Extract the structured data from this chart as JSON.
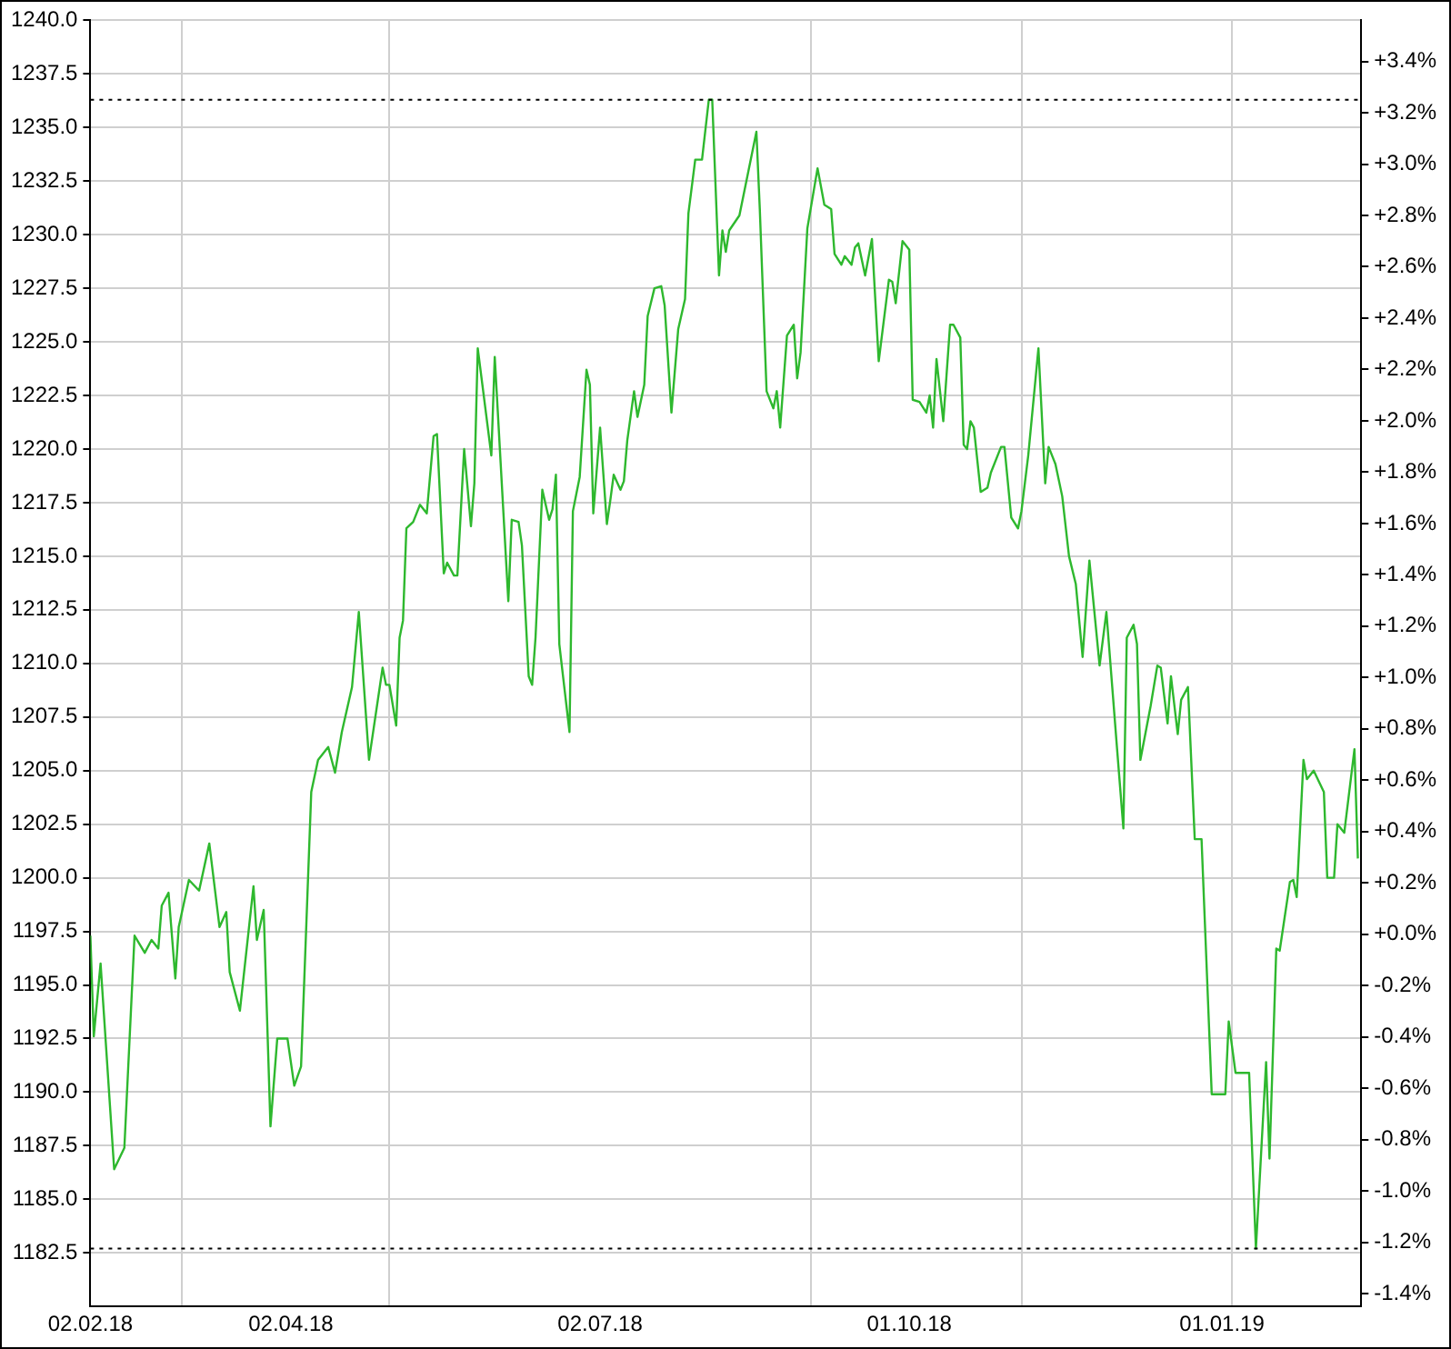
{
  "chart_data": {
    "type": "line",
    "color": "#2eb82e",
    "x": [
      "2018-02-02",
      "2018-02-03",
      "2018-02-05",
      "2018-02-09",
      "2018-02-12",
      "2018-02-15",
      "2018-02-18",
      "2018-02-20",
      "2018-02-22",
      "2018-02-23",
      "2018-02-25",
      "2018-02-27",
      "2018-02-28",
      "2018-03-03",
      "2018-03-06",
      "2018-03-09",
      "2018-03-12",
      "2018-03-14",
      "2018-03-15",
      "2018-03-18",
      "2018-03-22",
      "2018-03-23",
      "2018-03-25",
      "2018-03-27",
      "2018-03-29",
      "2018-04-01",
      "2018-04-03",
      "2018-04-05",
      "2018-04-08",
      "2018-04-10",
      "2018-04-12",
      "2018-04-13",
      "2018-04-15",
      "2018-04-17",
      "2018-04-20",
      "2018-04-22",
      "2018-04-25",
      "2018-04-29",
      "2018-04-30",
      "2018-05-01",
      "2018-05-03",
      "2018-05-04",
      "2018-05-05",
      "2018-05-06",
      "2018-05-08",
      "2018-05-10",
      "2018-05-12",
      "2018-05-14",
      "2018-05-15",
      "2018-05-17",
      "2018-05-18",
      "2018-05-20",
      "2018-05-21",
      "2018-05-23",
      "2018-05-25",
      "2018-05-26",
      "2018-05-27",
      "2018-05-31",
      "2018-06-01",
      "2018-06-05",
      "2018-06-06",
      "2018-06-08",
      "2018-06-09",
      "2018-06-11",
      "2018-06-12",
      "2018-06-13",
      "2018-06-15",
      "2018-06-17",
      "2018-06-18",
      "2018-06-19",
      "2018-06-20",
      "2018-06-23",
      "2018-06-24",
      "2018-06-26",
      "2018-06-28",
      "2018-06-29",
      "2018-06-30",
      "2018-07-02",
      "2018-07-04",
      "2018-07-05",
      "2018-07-06",
      "2018-07-08",
      "2018-07-09",
      "2018-07-10",
      "2018-07-12",
      "2018-07-13",
      "2018-07-15",
      "2018-07-16",
      "2018-07-18",
      "2018-07-20",
      "2018-07-21",
      "2018-07-23",
      "2018-07-25",
      "2018-07-27",
      "2018-07-28",
      "2018-07-30",
      "2018-08-01",
      "2018-08-03",
      "2018-08-04",
      "2018-08-06",
      "2018-08-07",
      "2018-08-08",
      "2018-08-09",
      "2018-08-12",
      "2018-08-17",
      "2018-08-18",
      "2018-08-20",
      "2018-08-22",
      "2018-08-23",
      "2018-08-24",
      "2018-08-26",
      "2018-08-28",
      "2018-08-29",
      "2018-08-30",
      "2018-09-01",
      "2018-09-04",
      "2018-09-06",
      "2018-09-08",
      "2018-09-09",
      "2018-09-11",
      "2018-09-12",
      "2018-09-14",
      "2018-09-15",
      "2018-09-16",
      "2018-09-18",
      "2018-09-20",
      "2018-09-22",
      "2018-09-25",
      "2018-09-26",
      "2018-09-27",
      "2018-09-29",
      "2018-10-01",
      "2018-10-02",
      "2018-10-04",
      "2018-10-06",
      "2018-10-07",
      "2018-10-08",
      "2018-10-09",
      "2018-10-11",
      "2018-10-13",
      "2018-10-14",
      "2018-10-16",
      "2018-10-17",
      "2018-10-18",
      "2018-10-19",
      "2018-10-20",
      "2018-10-22",
      "2018-10-24",
      "2018-10-25",
      "2018-10-28",
      "2018-10-29",
      "2018-10-31",
      "2018-11-02",
      "2018-11-03",
      "2018-11-05",
      "2018-11-08",
      "2018-11-10",
      "2018-11-11",
      "2018-11-13",
      "2018-11-15",
      "2018-11-17",
      "2018-11-19",
      "2018-11-21",
      "2018-11-23",
      "2018-11-26",
      "2018-11-28",
      "2018-12-01",
      "2018-12-03",
      "2018-12-04",
      "2018-12-06",
      "2018-12-07",
      "2018-12-08",
      "2018-12-11",
      "2018-12-13",
      "2018-12-14",
      "2018-12-16",
      "2018-12-17",
      "2018-12-19",
      "2018-12-20",
      "2018-12-22",
      "2018-12-24",
      "2018-12-26",
      "2018-12-29",
      "2019-01-02",
      "2019-01-03",
      "2019-01-05",
      "2019-01-09",
      "2019-01-11",
      "2019-01-14",
      "2019-01-15",
      "2019-01-17",
      "2019-01-18",
      "2019-01-21",
      "2019-01-22",
      "2019-01-23",
      "2019-01-25",
      "2019-01-26",
      "2019-01-28",
      "2019-01-31",
      "2019-02-01",
      "2019-02-03",
      "2019-02-04",
      "2019-02-06",
      "2019-02-09",
      "2019-02-10"
    ],
    "values": [
      1197.3,
      1192.6,
      1196.0,
      1186.4,
      1187.4,
      1197.3,
      1196.5,
      1197.1,
      1196.7,
      1198.7,
      1199.3,
      1195.3,
      1197.7,
      1199.9,
      1199.4,
      1201.6,
      1197.7,
      1198.4,
      1195.6,
      1193.8,
      1199.6,
      1197.1,
      1198.5,
      1188.4,
      1192.5,
      1192.5,
      1190.3,
      1191.2,
      1204.0,
      1205.5,
      1205.9,
      1206.1,
      1204.9,
      1206.8,
      1208.9,
      1212.4,
      1205.5,
      1209.8,
      1209.0,
      1209.0,
      1207.1,
      1211.2,
      1212.0,
      1216.3,
      1216.6,
      1217.4,
      1217.0,
      1220.6,
      1220.7,
      1214.2,
      1214.7,
      1214.1,
      1214.1,
      1220.0,
      1216.4,
      1218.4,
      1224.7,
      1219.7,
      1224.3,
      1212.9,
      1216.7,
      1216.6,
      1215.5,
      1209.4,
      1209.0,
      1211.2,
      1218.1,
      1216.7,
      1217.2,
      1218.8,
      1210.9,
      1206.8,
      1217.1,
      1218.7,
      1223.7,
      1223.0,
      1217.0,
      1221.0,
      1216.5,
      1217.6,
      1218.8,
      1218.1,
      1218.5,
      1220.4,
      1222.7,
      1221.5,
      1223.0,
      1226.2,
      1227.5,
      1227.6,
      1226.7,
      1221.7,
      1225.6,
      1227.0,
      1231.0,
      1233.5,
      1233.5,
      1236.3,
      1236.3,
      1228.1,
      1230.2,
      1229.2,
      1230.2,
      1230.9,
      1234.8,
      1231.2,
      1222.7,
      1221.9,
      1222.7,
      1221.0,
      1225.3,
      1225.8,
      1223.3,
      1224.5,
      1230.3,
      1233.1,
      1231.4,
      1231.2,
      1229.1,
      1228.6,
      1229.0,
      1228.6,
      1229.4,
      1229.6,
      1228.1,
      1229.8,
      1224.1,
      1227.9,
      1227.8,
      1226.8,
      1229.7,
      1229.3,
      1222.3,
      1222.2,
      1221.7,
      1222.5,
      1221.0,
      1224.2,
      1221.3,
      1225.8,
      1225.8,
      1225.2,
      1220.2,
      1220.0,
      1221.3,
      1221.0,
      1218.0,
      1218.2,
      1218.9,
      1220.1,
      1220.1,
      1216.8,
      1216.3,
      1217.1,
      1219.7,
      1224.7,
      1218.4,
      1220.1,
      1219.3,
      1217.8,
      1215.0,
      1213.7,
      1210.3,
      1214.8,
      1209.9,
      1212.4,
      1206.3,
      1202.3,
      1211.2,
      1211.8,
      1210.9,
      1205.5,
      1208.0,
      1209.9,
      1209.8,
      1207.2,
      1209.4,
      1206.7,
      1208.3,
      1208.9,
      1201.8,
      1201.8,
      1189.9,
      1189.9,
      1193.3,
      1190.9,
      1190.9,
      1182.7,
      1191.4,
      1186.9,
      1196.7,
      1196.6,
      1199.8,
      1199.9,
      1199.1,
      1205.5,
      1204.6,
      1205.0,
      1204.0,
      1200.0,
      1200.0,
      1202.5,
      1202.1,
      1206.0,
      1200.9
    ],
    "xlim": [
      "2018-02-02",
      "2019-02-11"
    ],
    "xticks": [
      {
        "value": "2018-02-02",
        "label": "02.02.18"
      },
      {
        "value": "2018-03-01",
        "label": null
      },
      {
        "value": "2018-04-02",
        "label": "02.04.18"
      },
      {
        "value": "2018-05-01",
        "label": null
      },
      {
        "value": "2018-07-02",
        "label": "02.07.18"
      },
      {
        "value": "2018-09-02",
        "label": null
      },
      {
        "value": "2018-10-01",
        "label": "01.10.18"
      },
      {
        "value": "2018-11-03",
        "label": null
      },
      {
        "value": "2019-01-01",
        "label": "01.01.19"
      },
      {
        "value": "2019-01-04",
        "label": null
      }
    ],
    "ylim": [
      1180,
      1240
    ],
    "yticks": [
      {
        "value": 1182.5,
        "label": "1182.5"
      },
      {
        "value": 1185,
        "label": "1185.0"
      },
      {
        "value": 1187.5,
        "label": "1187.5"
      },
      {
        "value": 1190,
        "label": "1190.0"
      },
      {
        "value": 1192.5,
        "label": "1192.5"
      },
      {
        "value": 1195,
        "label": "1195.0"
      },
      {
        "value": 1197.5,
        "label": "1197.5"
      },
      {
        "value": 1200,
        "label": "1200.0"
      },
      {
        "value": 1202.5,
        "label": "1202.5"
      },
      {
        "value": 1205,
        "label": "1205.0"
      },
      {
        "value": 1207.5,
        "label": "1207.5"
      },
      {
        "value": 1210,
        "label": "1210.0"
      },
      {
        "value": 1212.5,
        "label": "1212.5"
      },
      {
        "value": 1215,
        "label": "1215.0"
      },
      {
        "value": 1217.5,
        "label": "1217.5"
      },
      {
        "value": 1220,
        "label": "1220.0"
      },
      {
        "value": 1222.5,
        "label": "1222.5"
      },
      {
        "value": 1225,
        "label": "1225.0"
      },
      {
        "value": 1227.5,
        "label": "1227.5"
      },
      {
        "value": 1230,
        "label": "1230.0"
      },
      {
        "value": 1232.5,
        "label": "1232.5"
      },
      {
        "value": 1235,
        "label": "1235.0"
      },
      {
        "value": 1237.5,
        "label": "1237.5"
      },
      {
        "value": 1240,
        "label": "1240.0"
      }
    ],
    "y2lim": [
      -1.45,
      3.56
    ],
    "y2ticks": [
      {
        "value": -1.4,
        "label": "-1.4%"
      },
      {
        "value": -1.2,
        "label": "-1.2%"
      },
      {
        "value": -1.0,
        "label": "-1.0%"
      },
      {
        "value": -0.8,
        "label": "-0.8%"
      },
      {
        "value": -0.6,
        "label": "-0.6%"
      },
      {
        "value": -0.4,
        "label": "-0.4%"
      },
      {
        "value": -0.2,
        "label": "-0.2%"
      },
      {
        "value": 0,
        "label": "+0.0%"
      },
      {
        "value": 0.2,
        "label": "+0.2%"
      },
      {
        "value": 0.4,
        "label": "+0.4%"
      },
      {
        "value": 0.6,
        "label": "+0.6%"
      },
      {
        "value": 0.8,
        "label": "+0.8%"
      },
      {
        "value": 1.0,
        "label": "+1.0%"
      },
      {
        "value": 1.2,
        "label": "+1.2%"
      },
      {
        "value": 1.4,
        "label": "+1.4%"
      },
      {
        "value": 1.6,
        "label": "+1.6%"
      },
      {
        "value": 1.8,
        "label": "+1.8%"
      },
      {
        "value": 2.0,
        "label": "+2.0%"
      },
      {
        "value": 2.2,
        "label": "+2.2%"
      },
      {
        "value": 2.4,
        "label": "+2.4%"
      },
      {
        "value": 2.6,
        "label": "+2.6%"
      },
      {
        "value": 2.8,
        "label": "+2.8%"
      },
      {
        "value": 3.0,
        "label": "+3.0%"
      },
      {
        "value": 3.2,
        "label": "+3.2%"
      },
      {
        "value": 3.4,
        "label": "+3.4%"
      }
    ],
    "ref_lines": [
      {
        "axis": "y",
        "value": 1236.3,
        "color": "#000000",
        "line_style": "dotted"
      },
      {
        "axis": "y",
        "value": 1182.7,
        "color": "#000000",
        "line_style": "dotted"
      }
    ],
    "grid": true
  }
}
